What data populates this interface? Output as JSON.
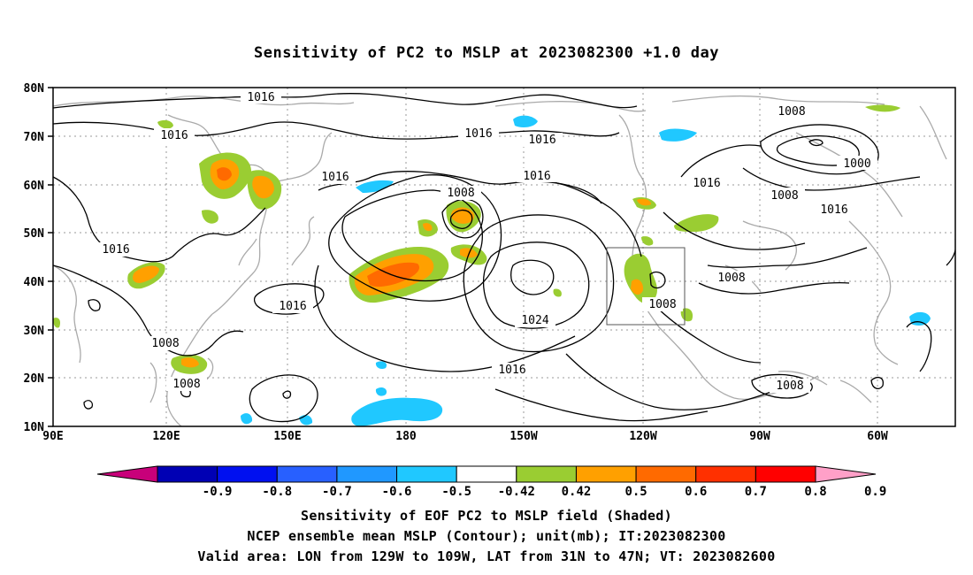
{
  "title": "Sensitivity of PC2 to MSLP at 2023082300 +1.0 day",
  "lat_labels": [
    "80N",
    "70N",
    "60N",
    "50N",
    "40N",
    "30N",
    "20N",
    "10N"
  ],
  "lon_labels": [
    "90E",
    "120E",
    "150E",
    "180",
    "150W",
    "120W",
    "90W",
    "60W"
  ],
  "contour_labels": [
    "1016",
    "1016",
    "1016",
    "1016",
    "1016",
    "1016",
    "1016",
    "1016",
    "1016",
    "1016",
    "1008",
    "1008",
    "1008",
    "1008",
    "1008",
    "1008",
    "1008",
    "1008",
    "1000",
    "1024"
  ],
  "colorbar": {
    "labels": [
      "-0.9",
      "-0.8",
      "-0.7",
      "-0.6",
      "-0.5",
      "-0.42",
      "0.42",
      "0.5",
      "0.6",
      "0.7",
      "0.8",
      "0.9"
    ],
    "colors": [
      "#c8007a",
      "#0000b4",
      "#0010f0",
      "#2860ff",
      "#2098ff",
      "#20c8ff",
      "#ffffff",
      "#9acd32",
      "#ffa000",
      "#ff6a00",
      "#ff3000",
      "#ff0000",
      "#ffa0c8"
    ]
  },
  "valid_box": {
    "lon_min": "129W",
    "lon_max": "109W",
    "lat_min": "31N",
    "lat_max": "47N"
  },
  "captions": {
    "line1": "Sensitivity of EOF PC2 to MSLP field (Shaded)",
    "line2": "NCEP ensemble mean MSLP (Contour); unit(mb); IT:2023082300",
    "line3": "Valid area: LON from 129W to 109W, LAT from 31N to 47N; VT: 2023082600"
  }
}
